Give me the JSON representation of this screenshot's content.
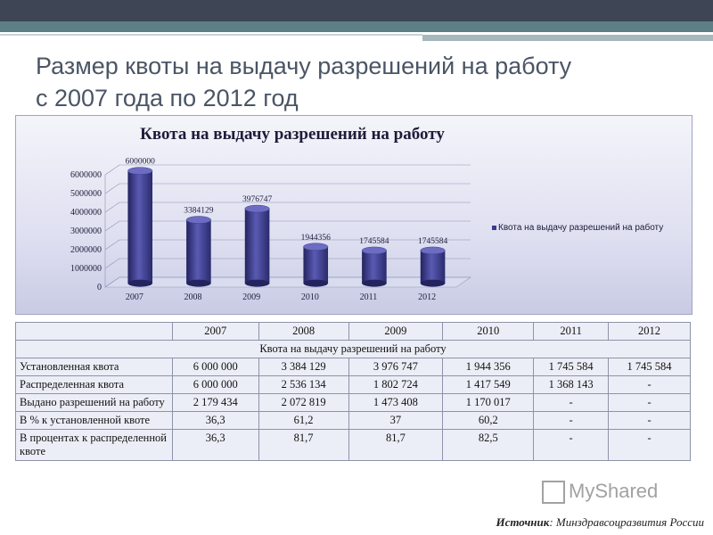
{
  "slide": {
    "title_line1": "Размер квоты на выдачу разрешений на работу",
    "title_line2": "с 2007 года по 2012 год",
    "source_label": "Источник",
    "source_text": ": Минздравсоцразвития России",
    "watermark": "MyShared"
  },
  "chart_data": {
    "type": "bar",
    "title": "Квота на выдачу разрешений на работу",
    "categories": [
      "2007",
      "2008",
      "2009",
      "2010",
      "2011",
      "2012"
    ],
    "series": [
      {
        "name": "Квота на выдачу разрешений на работу",
        "values": [
          6000000,
          3384129,
          3976747,
          1944356,
          1745584,
          1745584
        ]
      }
    ],
    "data_labels": [
      "6000000",
      "3384129",
      "3976747",
      "1944356",
      "1745584",
      "1745584"
    ],
    "y_ticks": [
      "0",
      "1000000",
      "2000000",
      "3000000",
      "4000000",
      "5000000",
      "6000000"
    ],
    "ylim": [
      0,
      6000000
    ],
    "grid": true,
    "legend_position": "right",
    "bar_color": "#3b3b8e"
  },
  "table": {
    "years": [
      "2007",
      "2008",
      "2009",
      "2010",
      "2011",
      "2012"
    ],
    "section_title": "Квота на выдачу разрешений на работу",
    "rows": [
      {
        "label": "Установленная квота",
        "values": [
          "6 000 000",
          "3 384 129",
          "3 976 747",
          "1 944 356",
          "1 745 584",
          "1 745 584"
        ]
      },
      {
        "label": "Распределенная квота",
        "values": [
          "6 000 000",
          "2 536 134",
          "1 802 724",
          "1 417 549",
          "1 368 143",
          "-"
        ]
      },
      {
        "label": "Выдано разрешений на работу",
        "values": [
          "2 179 434",
          "2 072 819",
          "1 473 408",
          "1 170 017",
          "-",
          "-"
        ]
      },
      {
        "label": "В % к установленной квоте",
        "values": [
          "36,3",
          "61,2",
          "37",
          "60,2",
          "-",
          "-"
        ]
      },
      {
        "label": "В процентах к распределенной квоте",
        "values": [
          "36,3",
          "81,7",
          "81,7",
          "82,5",
          "-",
          "-"
        ]
      }
    ]
  }
}
